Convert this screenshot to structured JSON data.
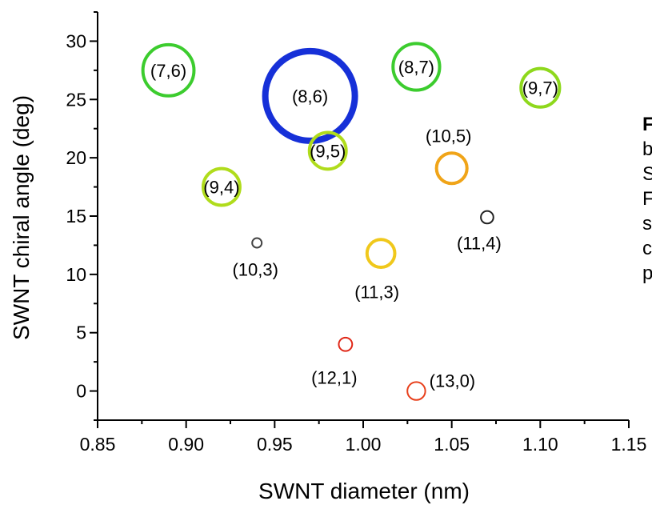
{
  "chart_data": {
    "type": "scatter",
    "xlabel": "SWNT diameter (nm)",
    "ylabel": "SWNT chiral angle (deg)",
    "xlim": [
      0.85,
      1.15
    ],
    "ylim": [
      -2.5,
      32.5
    ],
    "xticks": [
      "0.85",
      "0.90",
      "0.95",
      "1.00",
      "1.05",
      "1.10",
      "1.15"
    ],
    "yticks": [
      "0",
      "5",
      "10",
      "15",
      "20",
      "25",
      "30"
    ],
    "points": [
      {
        "label": "(7,6)",
        "x": 0.89,
        "y": 27.5,
        "relative_size": 0.57,
        "color": "#3ccc2e"
      },
      {
        "label": "(8,6)",
        "x": 0.97,
        "y": 25.3,
        "relative_size": 1.0,
        "color": "#1630d8"
      },
      {
        "label": "(8,7)",
        "x": 1.03,
        "y": 27.8,
        "relative_size": 0.52,
        "color": "#3ccc2e"
      },
      {
        "label": "(9,7)",
        "x": 1.1,
        "y": 26.0,
        "relative_size": 0.43,
        "color": "#8ed81c"
      },
      {
        "label": "(9,5)",
        "x": 0.98,
        "y": 20.6,
        "relative_size": 0.41,
        "color": "#b0dc1c"
      },
      {
        "label": "(9,4)",
        "x": 0.92,
        "y": 17.5,
        "relative_size": 0.41,
        "color": "#b0dc1c"
      },
      {
        "label": "(10,5)",
        "x": 1.05,
        "y": 19.1,
        "relative_size": 0.34,
        "color": "#f0a418"
      },
      {
        "label": "(11,4)",
        "x": 1.07,
        "y": 14.9,
        "relative_size": 0.14,
        "color": "#222222"
      },
      {
        "label": "(10,3)",
        "x": 0.94,
        "y": 12.7,
        "relative_size": 0.08,
        "color": "#444444"
      },
      {
        "label": "(11,3)",
        "x": 1.01,
        "y": 11.8,
        "relative_size": 0.31,
        "color": "#f0c81c"
      },
      {
        "label": "(12,1)",
        "x": 0.99,
        "y": 4.0,
        "relative_size": 0.15,
        "color": "#e02818"
      },
      {
        "label": "(13,0)",
        "x": 1.03,
        "y": 0.0,
        "relative_size": 0.2,
        "color": "#e8401c"
      }
    ]
  },
  "side_text": [
    "F",
    "b",
    "S",
    "F",
    "s",
    "c",
    "p"
  ]
}
